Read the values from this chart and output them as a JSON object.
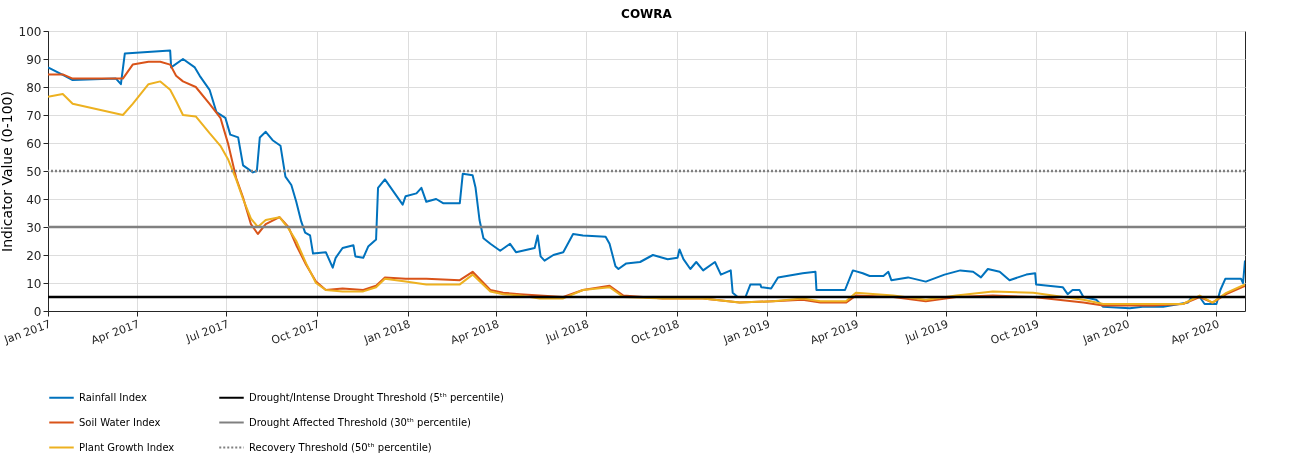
{
  "chart_data": {
    "type": "line",
    "title": "COWRA",
    "ylabel": "Indicator Value (0-100)",
    "xlim": [
      "2017-01-01",
      "2020-04-30"
    ],
    "xticks": [
      {
        "value": "2017-01-01",
        "label": "Jan 2017"
      },
      {
        "value": "2017-04-01",
        "label": "Apr 2017"
      },
      {
        "value": "2017-07-01",
        "label": "Jul 2017"
      },
      {
        "value": "2017-10-01",
        "label": "Oct 2017"
      },
      {
        "value": "2018-01-01",
        "label": "Jan 2018"
      },
      {
        "value": "2018-04-01",
        "label": "Apr 2018"
      },
      {
        "value": "2018-07-01",
        "label": "Jul 2018"
      },
      {
        "value": "2018-10-01",
        "label": "Oct 2018"
      },
      {
        "value": "2019-01-01",
        "label": "Jan 2019"
      },
      {
        "value": "2019-04-01",
        "label": "Apr 2019"
      },
      {
        "value": "2019-07-01",
        "label": "Jul 2019"
      },
      {
        "value": "2019-10-01",
        "label": "Oct 2019"
      },
      {
        "value": "2020-01-01",
        "label": "Jan 2020"
      },
      {
        "value": "2020-04-01",
        "label": "Apr 2020"
      }
    ],
    "ylim": [
      0,
      100
    ],
    "yticks": [
      0,
      10,
      20,
      30,
      40,
      50,
      60,
      70,
      80,
      90,
      100
    ],
    "grid": true,
    "legend": "bottom",
    "series": [
      {
        "name": "Rainfall Index",
        "color": "#0072bd",
        "x": [
          "2017-01-01",
          "2017-01-18",
          "2017-01-26",
          "2017-03-11",
          "2017-03-16",
          "2017-03-20",
          "2017-05-05",
          "2017-05-06",
          "2017-05-18",
          "2017-05-30",
          "2017-06-04",
          "2017-06-14",
          "2017-06-21",
          "2017-06-30",
          "2017-07-05",
          "2017-07-13",
          "2017-07-18",
          "2017-07-28",
          "2017-08-01",
          "2017-08-04",
          "2017-08-10",
          "2017-08-17",
          "2017-08-25",
          "2017-08-30",
          "2017-09-05",
          "2017-09-10",
          "2017-09-15",
          "2017-09-19",
          "2017-09-24",
          "2017-09-27",
          "2017-10-10",
          "2017-10-17",
          "2017-10-20",
          "2017-10-27",
          "2017-11-07",
          "2017-11-09",
          "2017-11-17",
          "2017-11-22",
          "2017-11-30",
          "2017-12-02",
          "2017-12-09",
          "2017-12-17",
          "2017-12-27",
          "2017-12-30",
          "2018-01-10",
          "2018-01-15",
          "2018-01-20",
          "2018-01-30",
          "2018-02-06",
          "2018-02-23",
          "2018-02-26",
          "2018-03-08",
          "2018-03-11",
          "2018-03-15",
          "2018-03-19",
          "2018-03-26",
          "2018-04-05",
          "2018-04-15",
          "2018-04-21",
          "2018-05-10",
          "2018-05-13",
          "2018-05-16",
          "2018-05-20",
          "2018-05-29",
          "2018-06-08",
          "2018-06-18",
          "2018-06-28",
          "2018-07-21",
          "2018-07-25",
          "2018-07-31",
          "2018-08-03",
          "2018-08-11",
          "2018-08-25",
          "2018-09-07",
          "2018-09-22",
          "2018-10-02",
          "2018-10-04",
          "2018-10-08",
          "2018-10-15",
          "2018-10-21",
          "2018-10-28",
          "2018-11-09",
          "2018-11-15",
          "2018-11-25",
          "2018-11-27",
          "2018-12-02",
          "2018-12-10",
          "2018-12-15",
          "2018-12-25",
          "2018-12-26",
          "2019-01-05",
          "2019-01-12",
          "2019-02-06",
          "2019-02-19",
          "2019-02-20",
          "2019-03-21",
          "2019-03-29",
          "2019-04-08",
          "2019-04-15",
          "2019-04-29",
          "2019-05-04",
          "2019-05-07",
          "2019-05-24",
          "2019-06-11",
          "2019-06-30",
          "2019-07-16",
          "2019-07-29",
          "2019-08-06",
          "2019-08-13",
          "2019-08-25",
          "2019-09-04",
          "2019-09-21",
          "2019-09-30",
          "2019-10-01",
          "2019-10-28",
          "2019-11-02",
          "2019-11-07",
          "2019-11-14",
          "2019-11-18",
          "2019-12-01",
          "2019-12-08",
          "2020-01-04",
          "2020-01-17",
          "2020-02-07",
          "2020-03-03",
          "2020-03-06",
          "2020-03-15",
          "2020-03-20",
          "2020-04-01",
          "2020-04-05",
          "2020-04-10",
          "2020-04-26",
          "2020-04-28",
          "2020-04-30"
        ],
        "values": [
          87,
          84,
          82.5,
          83,
          81,
          92,
          93,
          87,
          90,
          87,
          84,
          79,
          71,
          69,
          63,
          62,
          52,
          49.5,
          50,
          62,
          64,
          61,
          59,
          48,
          45,
          39,
          32,
          28,
          27,
          20.5,
          21,
          15.5,
          19,
          22.5,
          23.5,
          19.5,
          19,
          23,
          25.5,
          44,
          47,
          43,
          38,
          41,
          42,
          44,
          39,
          40,
          38.5,
          38.5,
          49,
          48.5,
          44,
          32.5,
          26,
          24,
          21.5,
          24,
          21,
          22.5,
          27,
          19.5,
          18,
          20,
          21,
          27.5,
          27,
          26.5,
          24,
          16,
          15,
          17,
          17.5,
          20,
          18.5,
          19,
          22,
          18.5,
          15,
          17.5,
          14.5,
          17.5,
          13,
          14.5,
          6.5,
          5,
          5,
          9.5,
          9.5,
          8.5,
          8,
          12,
          13.5,
          14,
          7.5,
          7.5,
          14.5,
          13.5,
          12.5,
          12.5,
          14,
          11,
          12,
          10.5,
          13,
          14.5,
          14,
          12,
          15,
          14,
          11,
          13,
          13.5,
          9.5,
          8.5,
          6,
          7.5,
          7.5,
          5,
          4,
          1.5,
          1,
          1.5,
          1.5,
          3,
          4.5,
          5,
          2.5,
          2.5,
          7.5,
          11.5,
          11.5,
          10,
          18
        ]
      },
      {
        "name": "Soil Water Index",
        "color": "#d95319",
        "x": [
          "2017-01-01",
          "2017-01-16",
          "2017-01-26",
          "2017-03-18",
          "2017-03-28",
          "2017-04-13",
          "2017-04-25",
          "2017-05-05",
          "2017-05-11",
          "2017-05-18",
          "2017-05-31",
          "2017-06-14",
          "2017-06-25",
          "2017-07-03",
          "2017-07-11",
          "2017-07-18",
          "2017-07-26",
          "2017-08-02",
          "2017-08-10",
          "2017-08-24",
          "2017-09-02",
          "2017-09-10",
          "2017-09-20",
          "2017-09-30",
          "2017-10-10",
          "2017-10-27",
          "2017-11-17",
          "2017-11-30",
          "2017-12-09",
          "2017-12-30",
          "2018-01-20",
          "2018-02-23",
          "2018-03-08",
          "2018-03-26",
          "2018-04-08",
          "2018-04-25",
          "2018-05-15",
          "2018-06-08",
          "2018-06-28",
          "2018-07-25",
          "2018-08-08",
          "2018-09-17",
          "2018-10-28",
          "2018-12-04",
          "2019-01-07",
          "2019-02-06",
          "2019-02-24",
          "2019-03-22",
          "2019-04-01",
          "2019-05-09",
          "2019-06-11",
          "2019-07-12",
          "2019-08-18",
          "2019-09-28",
          "2019-11-18",
          "2019-12-08",
          "2020-01-28",
          "2020-02-27",
          "2020-03-15",
          "2020-03-28",
          "2020-04-11",
          "2020-04-30"
        ],
        "values": [
          84.5,
          84.5,
          83,
          83,
          88,
          89,
          89,
          88,
          84,
          82,
          80,
          74,
          69,
          59.5,
          47.5,
          40.5,
          31,
          27.5,
          31,
          33.5,
          30,
          23.5,
          16.5,
          10.5,
          7.5,
          8,
          7.5,
          9,
          12,
          11.5,
          11.5,
          11,
          14,
          7.5,
          6.5,
          6,
          5.5,
          5,
          7.5,
          9,
          5.5,
          4.5,
          4.5,
          3,
          3.5,
          4,
          3,
          3,
          5.5,
          5,
          3.5,
          5,
          5.5,
          5,
          3,
          2,
          2,
          2.5,
          5,
          3,
          6,
          9
        ]
      },
      {
        "name": "Plant Growth Index",
        "color": "#edb120",
        "x": [
          "2017-01-01",
          "2017-01-16",
          "2017-01-26",
          "2017-03-18",
          "2017-03-28",
          "2017-04-13",
          "2017-04-25",
          "2017-05-05",
          "2017-05-11",
          "2017-05-18",
          "2017-05-31",
          "2017-06-14",
          "2017-06-25",
          "2017-07-03",
          "2017-07-11",
          "2017-07-18",
          "2017-07-26",
          "2017-08-02",
          "2017-08-10",
          "2017-08-24",
          "2017-09-02",
          "2017-09-10",
          "2017-09-20",
          "2017-09-30",
          "2017-10-10",
          "2017-10-27",
          "2017-11-17",
          "2017-11-30",
          "2017-12-09",
          "2017-12-30",
          "2018-01-20",
          "2018-02-23",
          "2018-03-08",
          "2018-03-26",
          "2018-04-08",
          "2018-04-25",
          "2018-05-15",
          "2018-06-08",
          "2018-06-28",
          "2018-07-25",
          "2018-08-08",
          "2018-09-17",
          "2018-10-28",
          "2018-12-04",
          "2019-01-07",
          "2019-02-06",
          "2019-02-24",
          "2019-03-22",
          "2019-04-01",
          "2019-05-09",
          "2019-06-11",
          "2019-07-12",
          "2019-08-18",
          "2019-09-28",
          "2019-11-18",
          "2019-12-08",
          "2020-01-28",
          "2020-02-27",
          "2020-03-15",
          "2020-03-28",
          "2020-04-11",
          "2020-04-30"
        ],
        "values": [
          76.5,
          77.5,
          74,
          70,
          74,
          81,
          82,
          79,
          75,
          70,
          69.5,
          63.5,
          59,
          54,
          47,
          40,
          33,
          30,
          32.5,
          33.5,
          29.5,
          25,
          17,
          10,
          7.5,
          7,
          7,
          8.5,
          11.5,
          10.5,
          9.5,
          9.5,
          13,
          7,
          6,
          5.5,
          4.5,
          4.5,
          7.5,
          8.5,
          5,
          4.5,
          4.5,
          3,
          3.5,
          4.5,
          3.5,
          3.5,
          6.5,
          5.5,
          4,
          5.5,
          7,
          6.5,
          4,
          2.5,
          2.5,
          2.5,
          5.5,
          3,
          6.5,
          9.5
        ]
      }
    ],
    "ref_lines": [
      {
        "axis": "y",
        "value": 5,
        "label": "Drought/Intense Drought Threshold (5ᵗʰ percentile)",
        "color": "#000000",
        "line_style": "solid"
      },
      {
        "axis": "y",
        "value": 30,
        "label": "Drought Affected Threshold (30ᵗʰ percentile)",
        "color": "#808080",
        "line_style": "solid"
      },
      {
        "axis": "y",
        "value": 50,
        "label": "Recovery Threshold (50ᵗʰ percentile)",
        "color": "#808080",
        "line_style": "dotted"
      }
    ]
  }
}
